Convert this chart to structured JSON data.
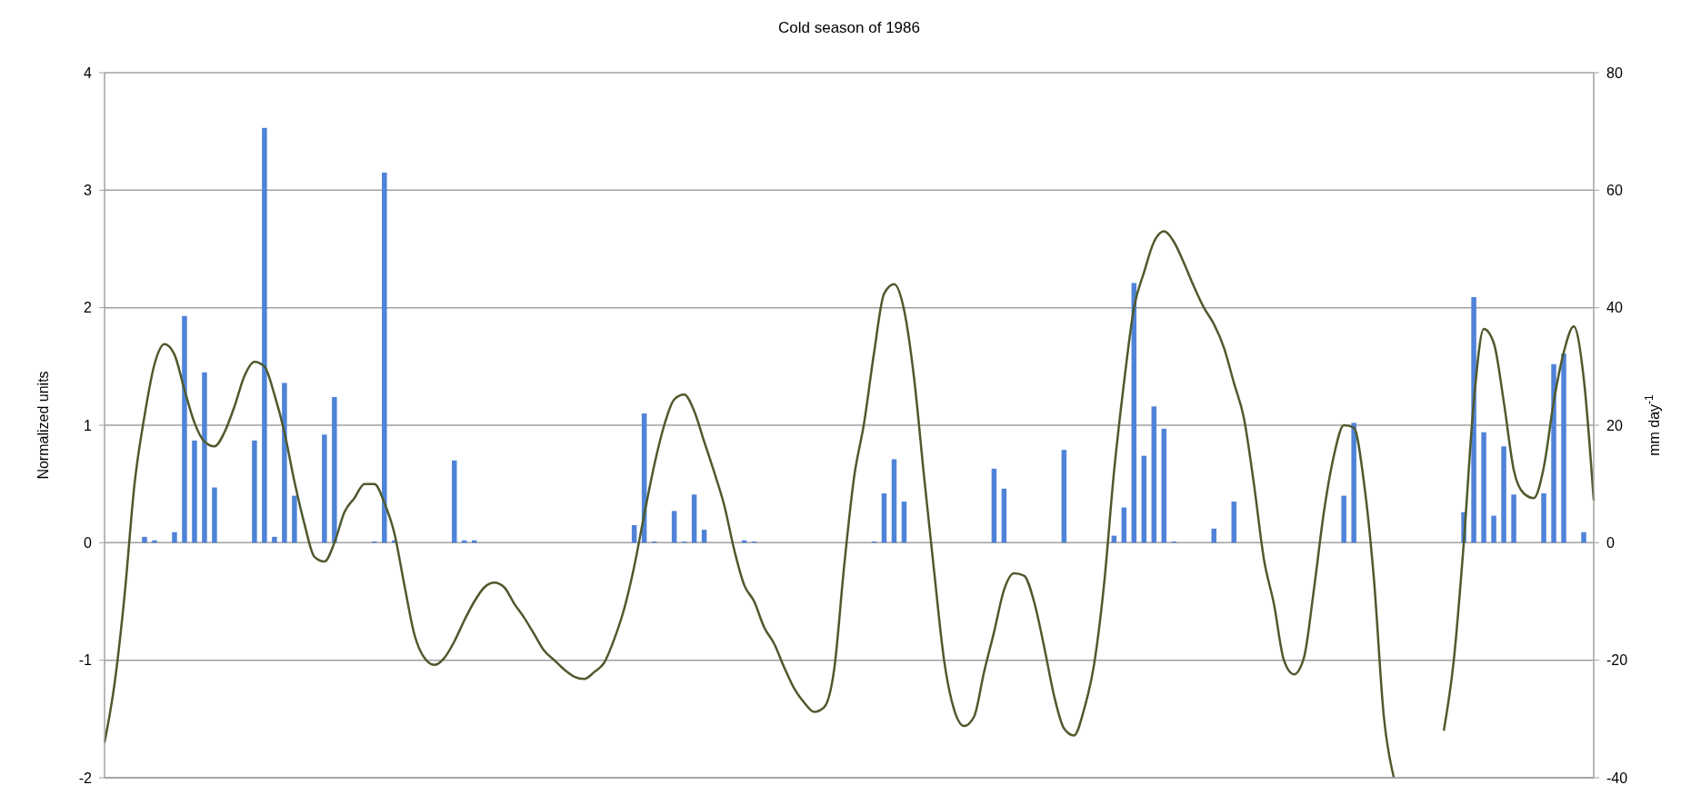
{
  "chart_data": {
    "type": "bar",
    "title": "Cold season of 1986",
    "ylabel": "Normalized units",
    "y2label": "mm day$^{-1}$",
    "categories": [
      null,
      null,
      null,
      null,
      null,
      null,
      null,
      null,
      null,
      null,
      null,
      null,
      null,
      null,
      null,
      null,
      null,
      null,
      null,
      null,
      null,
      null,
      null,
      null,
      null,
      null,
      null,
      null,
      null,
      null,
      null,
      null,
      null,
      null,
      null,
      null,
      null,
      null,
      null,
      null,
      null,
      null,
      null,
      null,
      null,
      null,
      null,
      null,
      null,
      null,
      null,
      null,
      null,
      null,
      null,
      null,
      null,
      null,
      null,
      null,
      null,
      null,
      null,
      null,
      null,
      null,
      null,
      null,
      null,
      null,
      null,
      null,
      null,
      null,
      null,
      null,
      null,
      null,
      null,
      null,
      null,
      null,
      null,
      null,
      null,
      null,
      null,
      null,
      null,
      null,
      null,
      null,
      null,
      null,
      null,
      null,
      null,
      null,
      null,
      null,
      null,
      null,
      null,
      null,
      null,
      null,
      null,
      null,
      null,
      null,
      null,
      null,
      null,
      null,
      null,
      null,
      null,
      null,
      null,
      null,
      null,
      null,
      null,
      null,
      null,
      null,
      null,
      null,
      null,
      null,
      null,
      null,
      null,
      null,
      null,
      null,
      null,
      null,
      null,
      null,
      null,
      null,
      null,
      null,
      null,
      null,
      null,
      null,
      null,
      null
    ],
    "series": [
      {
        "axis": "y2",
        "color": "#4f83d8",
        "values": [
          null,
          null,
          null,
          null,
          1,
          0.4,
          null,
          1.8,
          38.6,
          17.4,
          29,
          9.4,
          null,
          null,
          null,
          17.4,
          70.6,
          1,
          27.2,
          8,
          null,
          null,
          18.4,
          24.8,
          null,
          null,
          null,
          0.2,
          63,
          0.4,
          null,
          null,
          null,
          null,
          null,
          14,
          0.4,
          0.4,
          null,
          null,
          null,
          null,
          null,
          null,
          null,
          null,
          null,
          null,
          null,
          null,
          null,
          null,
          null,
          3,
          22,
          0.2,
          null,
          5.4,
          0.2,
          8.2,
          2.2,
          null,
          null,
          null,
          0.4,
          0.2,
          null,
          null,
          null,
          null,
          null,
          null,
          null,
          null,
          null,
          null,
          null,
          0.2,
          8.4,
          14.2,
          7,
          null,
          null,
          null,
          null,
          null,
          null,
          null,
          null,
          12.6,
          9.2,
          null,
          null,
          null,
          null,
          null,
          15.8,
          null,
          null,
          null,
          null,
          1.2,
          6,
          44.2,
          14.8,
          23.2,
          19.4,
          0.2,
          null,
          null,
          null,
          2.4,
          null,
          7,
          null,
          null,
          null,
          null,
          null,
          null,
          null,
          null,
          null,
          null,
          8,
          20.4,
          null,
          null,
          null,
          null,
          null,
          null,
          null,
          null,
          null,
          null,
          5.2,
          41.8,
          18.8,
          4.6,
          16.4,
          8.2,
          null,
          null,
          8.4,
          30.4,
          32.2,
          null,
          1.8,
          null
        ]
      },
      {
        "type": "line",
        "color": "#4e5a2c",
        "values": [
          -1.7,
          -1.2,
          -0.45,
          0.5,
          1.08,
          1.52,
          1.69,
          1.6,
          1.3,
          1.02,
          0.86,
          0.82,
          0.94,
          1.16,
          1.42,
          1.54,
          1.5,
          1.26,
          0.94,
          0.52,
          0.16,
          -0.12,
          -0.16,
          0,
          0.26,
          0.38,
          0.5,
          0.5,
          0.34,
          0.08,
          -0.36,
          -0.78,
          -0.98,
          -1.04,
          -0.98,
          -0.84,
          -0.66,
          -0.5,
          -0.38,
          -0.34,
          -0.38,
          -0.52,
          -0.64,
          -0.78,
          -0.92,
          -1,
          -1.08,
          -1.14,
          -1.16,
          -1.1,
          -1.02,
          -0.82,
          -0.56,
          -0.2,
          0.24,
          0.66,
          1,
          1.22,
          1.26,
          1.12,
          0.86,
          0.6,
          0.32,
          -0.06,
          -0.36,
          -0.5,
          -0.72,
          -0.86,
          -1.06,
          -1.24,
          -1.36,
          -1.44,
          -1.4,
          -1.08,
          -0.2,
          0.56,
          1.02,
          1.62,
          2.12,
          2.2,
          1.98,
          1.4,
          0.56,
          -0.24,
          -1,
          -1.42,
          -1.56,
          -1.48,
          -1.1,
          -0.76,
          -0.4,
          -0.26,
          -0.28,
          -0.5,
          -0.88,
          -1.3,
          -1.58,
          -1.64,
          -1.42,
          -1.04,
          -0.36,
          0.6,
          1.36,
          2,
          2.3,
          2.56,
          2.65,
          2.56,
          2.38,
          2.18,
          2,
          1.86,
          1.66,
          1.36,
          1.06,
          0.5,
          -0.14,
          -0.52,
          -1,
          -1.12,
          -0.98,
          -0.4,
          0.26,
          0.74,
          1,
          0.98,
          0.52,
          -0.3,
          -1.48,
          -2,
          null,
          null,
          null,
          null,
          null,
          null,
          null,
          null,
          null,
          null,
          null,
          null,
          null,
          null,
          null,
          null,
          null,
          null,
          null,
          null
        ]
      },
      {
        "type": "line",
        "color": "#4e5a2c",
        "values": [
          null,
          null,
          null,
          null,
          null,
          null,
          null,
          null,
          null,
          null,
          null,
          null,
          null,
          null,
          null,
          null,
          null,
          null,
          null,
          null,
          null,
          null,
          null,
          null,
          null,
          null,
          null,
          null,
          null,
          null,
          null,
          null,
          null,
          null,
          null,
          null,
          null,
          null,
          null,
          null,
          null,
          null,
          null,
          null,
          null,
          null,
          null,
          null,
          null,
          null,
          null,
          null,
          null,
          null,
          null,
          null,
          null,
          null,
          null,
          null,
          null,
          null,
          null,
          null,
          null,
          null,
          null,
          null,
          null,
          null,
          null,
          null,
          null,
          null,
          null,
          null,
          null,
          null,
          null,
          null,
          null,
          null,
          null,
          null,
          null,
          null,
          null,
          null,
          null,
          null,
          null,
          null,
          null,
          null,
          null,
          null,
          null,
          null,
          null,
          null,
          null,
          null,
          null,
          null,
          null,
          null,
          null,
          null,
          null,
          null,
          null,
          null,
          null,
          null,
          null,
          null,
          null,
          null,
          null,
          null,
          null,
          null,
          null,
          null,
          null,
          null,
          null,
          null,
          null,
          null,
          null,
          null,
          null,
          null,
          -1.6,
          -1,
          0,
          1.2,
          1.82,
          1.7,
          1.2,
          0.62,
          0.42,
          0.38,
          0.64,
          1.2,
          1.62,
          1.84,
          1.4,
          0.36
        ]
      }
    ],
    "ylim": [
      -2,
      4
    ],
    "yticks": [
      -2,
      -1,
      0,
      1,
      2,
      3,
      4
    ],
    "y2lim": [
      -40,
      80
    ],
    "y2ticks": [
      -40,
      -20,
      0,
      20,
      40,
      60,
      80
    ],
    "grid": "y"
  }
}
